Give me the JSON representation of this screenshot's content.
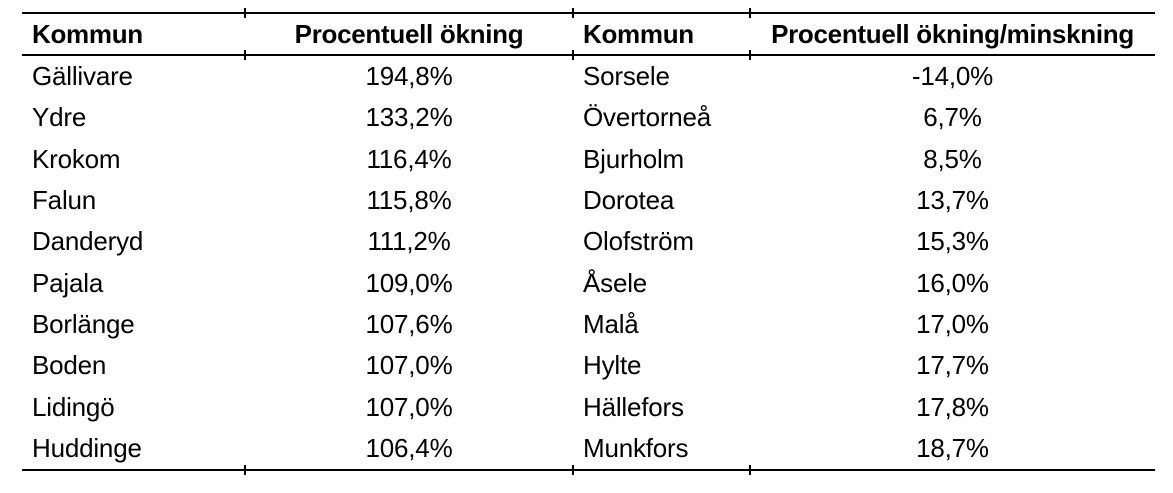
{
  "colors": {
    "text": "#000000",
    "border": "#000000",
    "background": "#ffffff"
  },
  "table": {
    "headers": {
      "left_kommun": "Kommun",
      "left_value": "Procentuell ökning",
      "right_kommun": "Kommun",
      "right_value": "Procentuell ökning/minskning"
    },
    "rows": [
      {
        "left_kommun": "Gällivare",
        "left_value": "194,8%",
        "right_kommun": "Sorsele",
        "right_value": "-14,0%"
      },
      {
        "left_kommun": "Ydre",
        "left_value": "133,2%",
        "right_kommun": "Övertorneå",
        "right_value": "6,7%"
      },
      {
        "left_kommun": "Krokom",
        "left_value": "116,4%",
        "right_kommun": "Bjurholm",
        "right_value": "8,5%"
      },
      {
        "left_kommun": "Falun",
        "left_value": "115,8%",
        "right_kommun": "Dorotea",
        "right_value": "13,7%"
      },
      {
        "left_kommun": "Danderyd",
        "left_value": "111,2%",
        "right_kommun": "Olofström",
        "right_value": "15,3%"
      },
      {
        "left_kommun": "Pajala",
        "left_value": "109,0%",
        "right_kommun": "Åsele",
        "right_value": "16,0%"
      },
      {
        "left_kommun": "Borlänge",
        "left_value": "107,6%",
        "right_kommun": "Malå",
        "right_value": "17,0%"
      },
      {
        "left_kommun": "Boden",
        "left_value": "107,0%",
        "right_kommun": "Hylte",
        "right_value": "17,7%"
      },
      {
        "left_kommun": "Lidingö",
        "left_value": "107,0%",
        "right_kommun": "Hällefors",
        "right_value": "17,8%"
      },
      {
        "left_kommun": "Huddinge",
        "left_value": "106,4%",
        "right_kommun": "Munkfors",
        "right_value": "18,7%"
      }
    ]
  }
}
